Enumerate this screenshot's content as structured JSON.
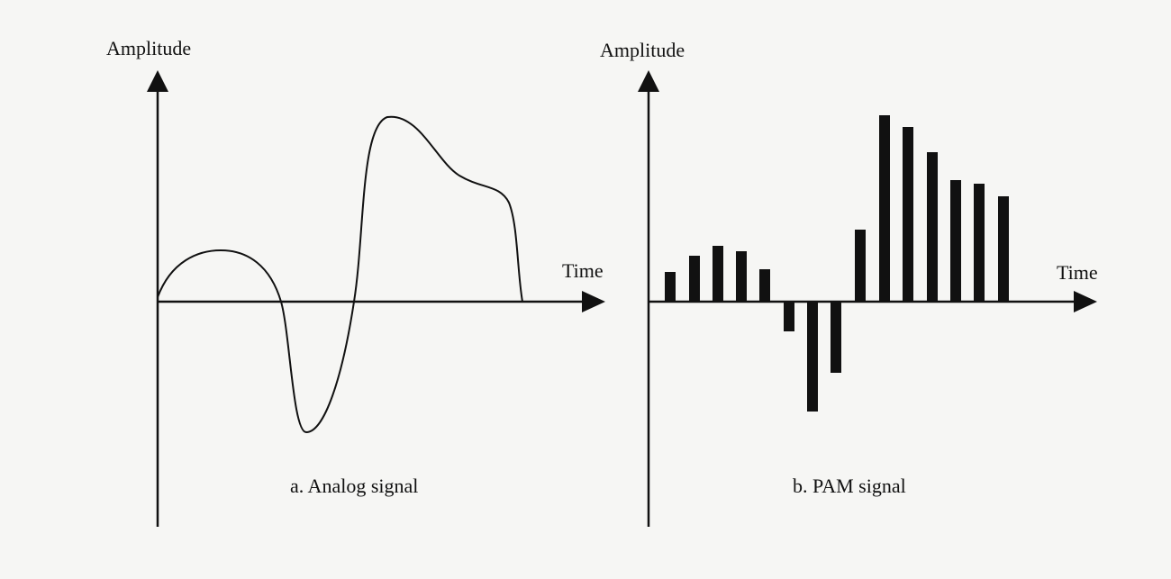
{
  "panels": [
    {
      "y_label": "Amplitude",
      "x_label": "Time",
      "caption": "a. Analog signal"
    },
    {
      "y_label": "Amplitude",
      "x_label": "Time",
      "caption": "b. PAM signal"
    }
  ]
}
